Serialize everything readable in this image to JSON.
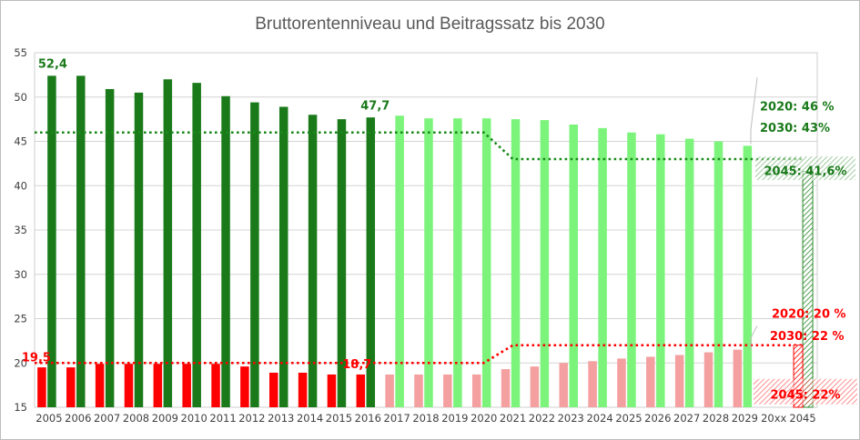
{
  "chart_data": {
    "type": "bar",
    "title": "Bruttorentenniveau und Beitragssatz bis 2030",
    "xlabel": "",
    "ylabel": "",
    "ylim": [
      15,
      55
    ],
    "yticks": [
      15,
      20,
      25,
      30,
      35,
      40,
      45,
      50,
      55
    ],
    "grid": true,
    "categories": [
      "2005",
      "2006",
      "2007",
      "2008",
      "2009",
      "2010",
      "2011",
      "2012",
      "2013",
      "2014",
      "2015",
      "2016",
      "2017",
      "2018",
      "2019",
      "2020",
      "2021",
      "2022",
      "2023",
      "2024",
      "2025",
      "2026",
      "2027",
      "2028",
      "2029",
      "20xx",
      "2045"
    ],
    "series": [
      {
        "key": "rentenniveau",
        "values": [
          52.4,
          52.4,
          50.9,
          50.5,
          52.0,
          51.6,
          50.1,
          49.4,
          48.9,
          48.0,
          47.5,
          47.7,
          47.9,
          47.6,
          47.6,
          47.6,
          47.5,
          47.4,
          46.9,
          46.5,
          46.0,
          45.8,
          45.3,
          45.0,
          44.5,
          null,
          null
        ],
        "color_actual": "#1a7a1a",
        "color_projected": "#7cf47c"
      },
      {
        "key": "beitragssatz",
        "values": [
          19.5,
          19.5,
          19.9,
          19.9,
          19.9,
          19.9,
          19.9,
          19.6,
          18.9,
          18.9,
          18.7,
          18.7,
          18.7,
          18.7,
          18.7,
          18.7,
          19.3,
          19.6,
          20.0,
          20.2,
          20.5,
          20.7,
          20.9,
          21.2,
          21.5,
          null,
          null
        ],
        "color_actual": "#ff0000",
        "color_projected": "#f4a0a0"
      }
    ],
    "actual_through": "2016",
    "reference_lines": [
      {
        "key": "untergrenze_rentenniveau",
        "color": "#1a8a1a",
        "points": [
          [
            "2005",
            46
          ],
          [
            "2020",
            46
          ],
          [
            "2021",
            43
          ],
          [
            "2045",
            43
          ]
        ]
      },
      {
        "key": "obergrenze_beitragssatz",
        "color": "#ff0000",
        "points": [
          [
            "2005",
            20
          ],
          [
            "2020",
            20
          ],
          [
            "2021",
            22
          ],
          [
            "2045",
            22
          ]
        ]
      }
    ],
    "target_bars_2045": [
      {
        "label": "2045: 41,6%",
        "value": 41.6,
        "color": "#2a8a2a"
      },
      {
        "label": "2045: 22%",
        "value": 22,
        "color": "#ff0000"
      }
    ],
    "annotations": [
      {
        "text": "52,4",
        "color": "#1a7a1a"
      },
      {
        "text": "47,7",
        "color": "#1a7a1a"
      },
      {
        "text": "19,5",
        "color": "#ff0000"
      },
      {
        "text": "18,7",
        "color": "#ff0000"
      },
      {
        "text": "2020: 46 %",
        "color": "#1a7a1a"
      },
      {
        "text": "2030:  43%",
        "color": "#1a7a1a"
      },
      {
        "text": "2020: 20 %",
        "color": "#ff0000"
      },
      {
        "text": "2030:  22 %",
        "color": "#ff0000"
      }
    ]
  }
}
